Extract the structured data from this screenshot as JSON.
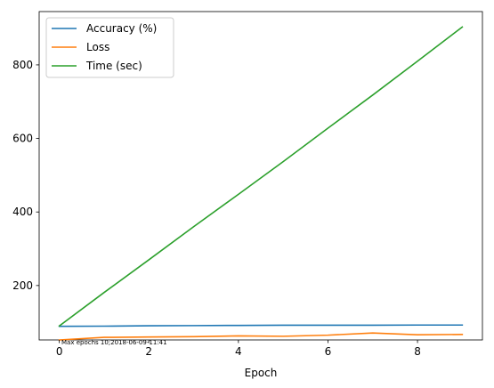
{
  "chart_data": {
    "type": "line",
    "title": "",
    "xlabel": "Epoch",
    "ylabel": "",
    "x": [
      0,
      1,
      2,
      3,
      4,
      5,
      6,
      7,
      8,
      9
    ],
    "xlim": [
      -0.45,
      9.45
    ],
    "ylim": [
      52,
      945
    ],
    "xticks": [
      0,
      2,
      4,
      6,
      8
    ],
    "yticks": [
      200,
      400,
      600,
      800
    ],
    "grid": false,
    "legend_position": "upper-left",
    "series": [
      {
        "name": "Accuracy (%)",
        "color": "#1f77b4",
        "values": [
          89,
          89.5,
          90.5,
          91,
          91.5,
          92,
          92,
          92,
          92.5,
          92.5
        ]
      },
      {
        "name": "Loss",
        "color": "#ff7f0e",
        "values": [
          52,
          59,
          60,
          61,
          63,
          62,
          65,
          71,
          66,
          67
        ]
      },
      {
        "name": "Time (sec)",
        "color": "#2ca02c",
        "values": [
          90,
          181,
          270,
          360,
          448,
          537,
          628,
          718,
          810,
          903
        ]
      }
    ],
    "annotation": "Max epochs 10;2018-06-09-11:41"
  }
}
